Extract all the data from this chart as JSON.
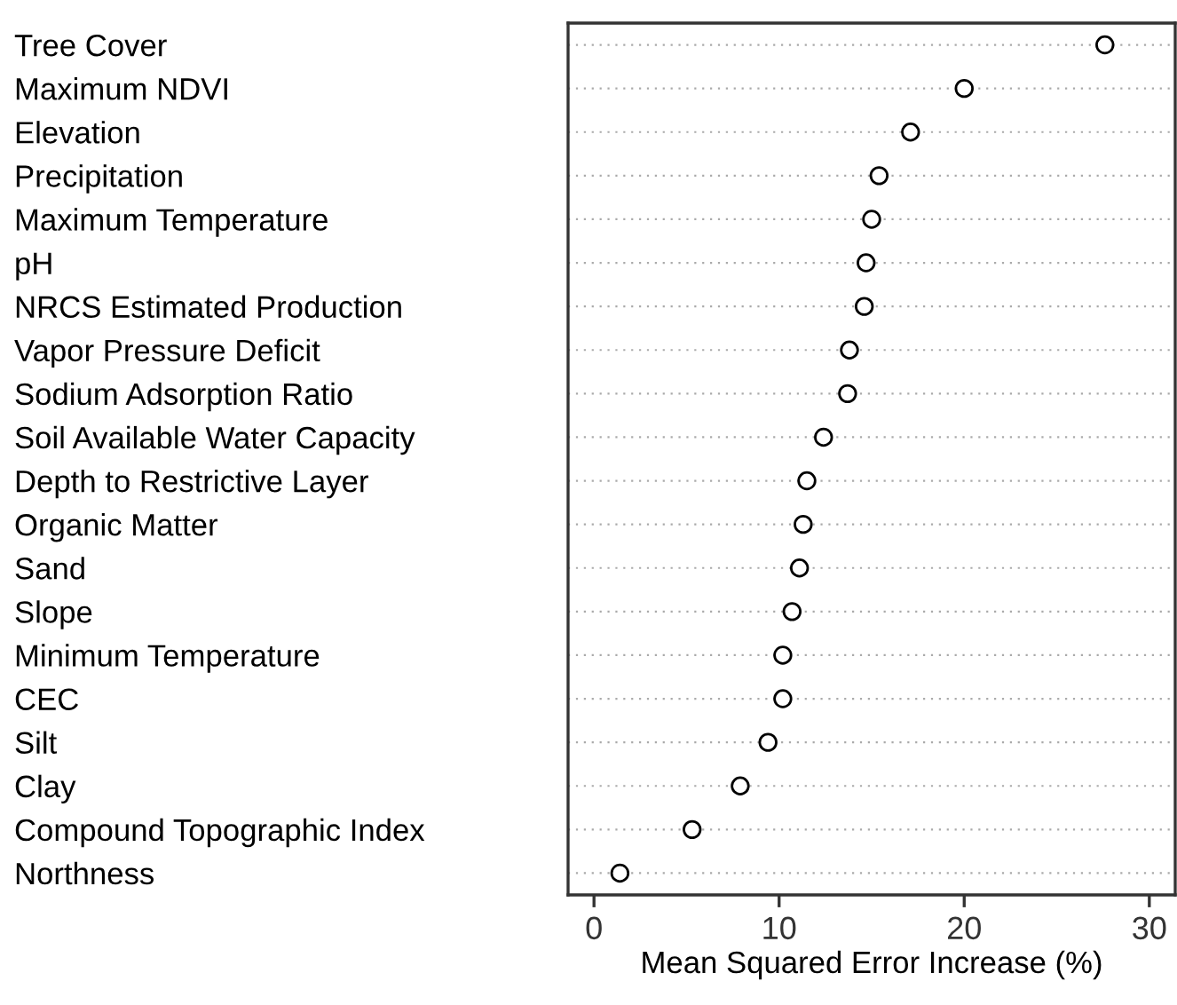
{
  "chart_data": {
    "type": "scatter",
    "xlabel": "Mean Squared Error Increase (%)",
    "categories": [
      "Tree Cover",
      "Maximum NDVI",
      "Elevation",
      "Precipitation",
      "Maximum Temperature",
      "pH",
      "NRCS Estimated Production",
      "Vapor Pressure Deficit",
      "Sodium Adsorption Ratio",
      "Soil Available Water Capacity",
      "Depth to Restrictive Layer",
      "Organic Matter",
      "Sand",
      "Slope",
      "Minimum Temperature",
      "CEC",
      "Silt",
      "Clay",
      "Compound Topographic Index",
      "Northness"
    ],
    "values": [
      27.6,
      20.0,
      17.1,
      15.4,
      15.0,
      14.7,
      14.6,
      13.8,
      13.7,
      12.4,
      11.5,
      11.3,
      11.1,
      10.7,
      10.2,
      10.2,
      9.4,
      7.9,
      5.3,
      1.4
    ],
    "color": "#000000",
    "marker": "circle",
    "orientation": "horizontal",
    "xlim": [
      -1.4,
      31.4
    ],
    "xticks": [
      0,
      10,
      20,
      30
    ],
    "grid": "y"
  }
}
